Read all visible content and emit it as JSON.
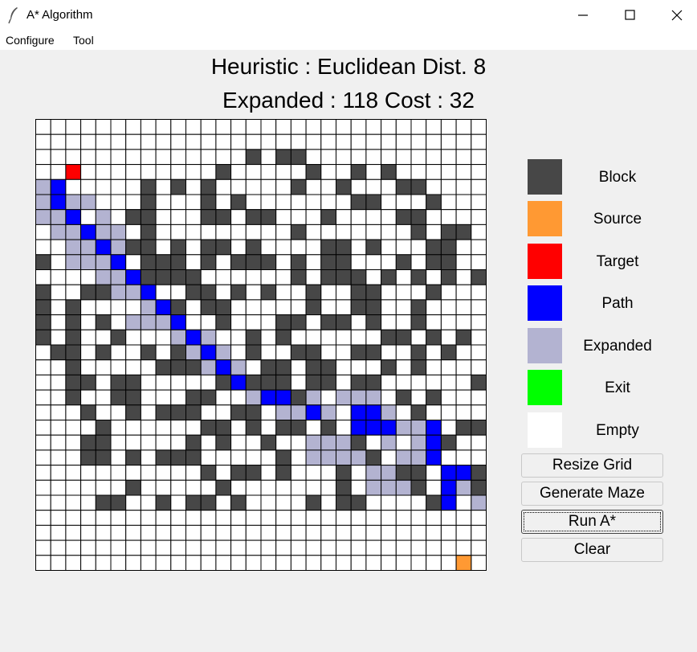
{
  "window": {
    "title": "A* Algorithm"
  },
  "menu": [
    "Configure",
    "Tool"
  ],
  "status": {
    "heuristic_line": "Heuristic : Euclidean Dist. 8",
    "stats_line": "Expanded : 118 Cost : 32"
  },
  "legend": [
    {
      "label": "Block",
      "color": "#474747"
    },
    {
      "label": "Source",
      "color": "#ff9933"
    },
    {
      "label": "Target",
      "color": "#ff0000"
    },
    {
      "label": "Path",
      "color": "#0000ff"
    },
    {
      "label": "Expanded",
      "color": "#b3b3d1"
    },
    {
      "label": "Exit",
      "color": "#00ff00"
    },
    {
      "label": "Empty",
      "color": "#ffffff"
    }
  ],
  "buttons": {
    "resize": "Resize Grid",
    "generate": "Generate Maze",
    "run": "Run A*",
    "clear": "Clear"
  },
  "grid": {
    "cells": [
      "..............................",
      "..............................",
      "..............#.##............",
      "..T.........#.....#..#.#......",
      "eP.....#.#.#.....#..#...##....",
      "ePee...#...#.#.......##...#...",
      "eeP.e.##...##.##...#....##....",
      ".eePee.#.........#.......#.##.",
      "..eePe##.#.##.#....##.#...##..",
      "#.eeeP.###.#.###.#.##...#.##..",
      "....eeP####......#.###.#.#.#.#",
      "#..##eeP..##.#.#..#..##...#...",
      "#.#....eP#.##.....#..##..#....",
      "#.#.#.eeeP..#...##.##.#..#....",
      "#.#..#...ePe..#.#......##.#.#.",
      ".##.#..#.#ePe.#..##..##..#.#..",
      "..#.....###ePe.##.##...#.#....",
      "..##.##.....#P###.##.##......#",
      "..#..##...##..ePP#e.eee.#.#...",
      "...#..#.###..##.eePe.PPe.#....",
      "....#......##.#.##.#.PPPeeP.##.",
      "...##.....#.#..#..eee#.e.eP#...",
      "...##.#.###.....#.eeee#.eeP....",
      "...........#.##.#...#.ee##.PP#.",
      "......#.....#.......#.eee#.Pe#..",
      "....##..#.##.#....#.##....#P.e.",
      "..............................",
      "..............................",
      "..............................",
      ".............................."
    ]
  }
}
